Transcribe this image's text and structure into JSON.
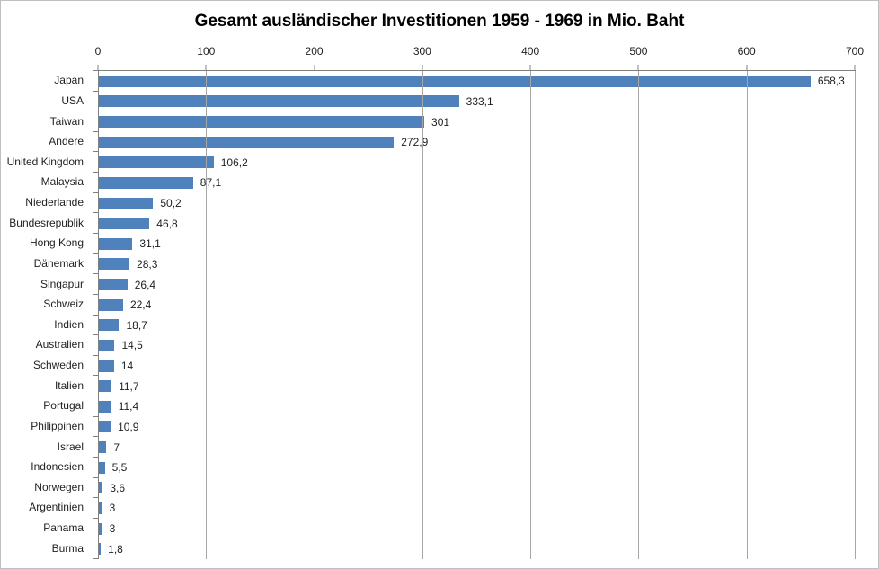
{
  "window": {
    "background": "#ffffff",
    "border_color": "#bfbfbf"
  },
  "chart_data": {
    "type": "bar",
    "orientation": "horizontal",
    "title": "Gesamt ausländischer Investitionen 1959 - 1969 in Mio. Baht",
    "categories": [
      "Japan",
      "USA",
      "Taiwan",
      "Andere",
      "United Kingdom",
      "Malaysia",
      "Niederlande",
      "Bundesrepublik",
      "Hong Kong",
      "Dänemark",
      "Singapur",
      "Schweiz",
      "Indien",
      "Australien",
      "Schweden",
      "Italien",
      "Portugal",
      "Philippinen",
      "Israel",
      "Indonesien",
      "Norwegen",
      "Argentinien",
      "Panama",
      "Burma"
    ],
    "values": [
      658.3,
      333.1,
      301,
      272.9,
      106.2,
      87.1,
      50.2,
      46.8,
      31.1,
      28.3,
      26.4,
      22.4,
      18.7,
      14.5,
      14,
      11.7,
      11.4,
      10.9,
      7,
      5.5,
      3.6,
      3,
      3,
      1.8
    ],
    "value_labels": [
      "658,3",
      "333,1",
      "301",
      "272,9",
      "106,2",
      "87,1",
      "50,2",
      "46,8",
      "31,1",
      "28,3",
      "26,4",
      "22,4",
      "18,7",
      "14,5",
      "14",
      "11,7",
      "11,4",
      "10,9",
      "7",
      "5,5",
      "3,6",
      "3",
      "3",
      "1,8"
    ],
    "xlim": [
      0,
      700
    ],
    "x_ticks": [
      0,
      100,
      200,
      300,
      400,
      500,
      600,
      700
    ],
    "x_tick_labels": [
      "0",
      "100",
      "200",
      "300",
      "400",
      "500",
      "600",
      "700"
    ],
    "xlabel": "",
    "ylabel": "",
    "legend": "none",
    "grid": "vertical-only",
    "bar_color": "#4F81BD",
    "axis_color": "#808080",
    "gridline_color": "#A6A6A6",
    "text_color": "#1f1f1f"
  }
}
